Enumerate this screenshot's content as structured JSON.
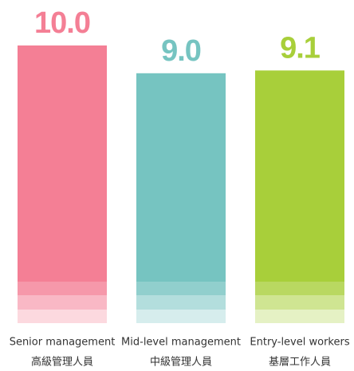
{
  "chart_data": {
    "type": "bar",
    "categories": [
      [
        "Senior management",
        "高級管理人員"
      ],
      [
        "Mid-level management",
        "中級管理人員"
      ],
      [
        "Entry-level workers",
        "基層工作人員"
      ]
    ],
    "values": [
      10.0,
      9.0,
      9.1
    ],
    "value_labels": [
      "10.0",
      "9.0",
      "9.1"
    ],
    "colors": [
      "#f47f95",
      "#76c4c1",
      "#a8cf3a"
    ],
    "ylim": [
      0,
      10
    ]
  }
}
